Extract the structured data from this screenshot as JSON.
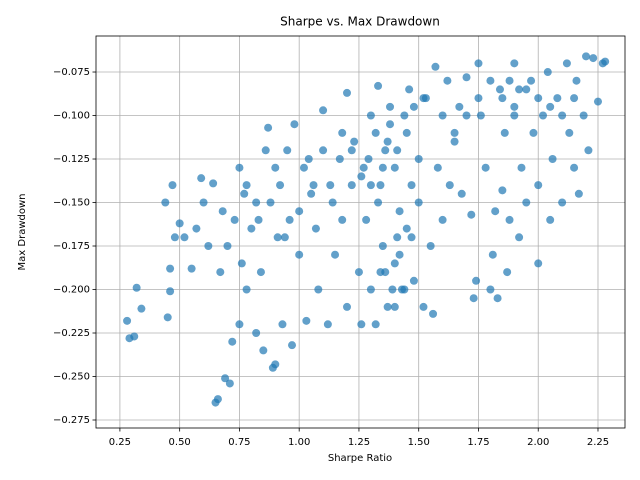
{
  "chart_data": {
    "type": "scatter",
    "title": "Sharpe vs. Max Drawdown",
    "x_label": "Sharpe Ratio",
    "y_label": "Max Drawdown",
    "color": "#1f77b4",
    "grid": true,
    "xlim": [
      0.15,
      2.363
    ],
    "ylim": [
      -0.2796,
      -0.0543
    ],
    "xticks": [
      0.25,
      {
        "value": 0.5,
        "label": "0.50"
      },
      0.75,
      {
        "value": 1.0,
        "label": "1.00"
      },
      1.25,
      {
        "value": 1.5,
        "label": "1.50"
      },
      1.75,
      {
        "value": 2.0,
        "label": "2.00"
      },
      2.25
    ],
    "yticks": [
      {
        "value": -0.275,
        "label": "−0.275"
      },
      {
        "value": -0.25,
        "label": "−0.250"
      },
      {
        "value": -0.225,
        "label": "−0.225"
      },
      {
        "value": -0.2,
        "label": "−0.200"
      },
      {
        "value": -0.175,
        "label": "−0.175"
      },
      {
        "value": -0.15,
        "label": "−0.150"
      },
      {
        "value": -0.125,
        "label": "−0.125"
      },
      {
        "value": -0.1,
        "label": "−0.100"
      },
      {
        "value": -0.075,
        "label": "−0.075"
      }
    ],
    "x": [
      0.28,
      0.29,
      0.31,
      0.32,
      0.34,
      0.44,
      0.45,
      0.46,
      0.46,
      0.47,
      0.48,
      0.5,
      0.52,
      0.55,
      0.57,
      0.59,
      0.6,
      0.62,
      0.64,
      0.65,
      0.66,
      0.67,
      0.68,
      0.69,
      0.7,
      0.71,
      0.72,
      0.73,
      0.75,
      0.75,
      0.76,
      0.77,
      0.78,
      0.8,
      0.82,
      0.83,
      0.84,
      0.85,
      0.86,
      0.87,
      0.88,
      0.89,
      0.9,
      0.91,
      0.92,
      0.93,
      0.95,
      0.97,
      0.98,
      1.0,
      1.0,
      1.02,
      1.03,
      1.05,
      1.07,
      1.08,
      1.1,
      1.1,
      1.12,
      1.13,
      1.15,
      1.17,
      1.18,
      1.2,
      1.2,
      1.22,
      1.23,
      1.25,
      1.26,
      1.27,
      1.28,
      1.3,
      1.3,
      1.32,
      1.33,
      1.34,
      1.35,
      1.36,
      1.37,
      1.38,
      1.4,
      1.4,
      1.42,
      1.43,
      1.45,
      1.46,
      1.47,
      1.48,
      1.5,
      1.5,
      1.52,
      1.53,
      1.55,
      1.56,
      1.57,
      1.58,
      1.6,
      1.6,
      1.62,
      1.63,
      1.65,
      1.67,
      1.68,
      1.7,
      1.72,
      1.73,
      1.74,
      1.75,
      1.76,
      1.78,
      1.8,
      1.81,
      1.82,
      1.83,
      1.84,
      1.85,
      1.86,
      1.87,
      1.88,
      1.9,
      1.9,
      1.92,
      1.93,
      1.95,
      1.97,
      1.98,
      2.0,
      2.0,
      2.02,
      2.04,
      2.05,
      2.06,
      2.08,
      2.1,
      2.12,
      2.13,
      2.15,
      2.16,
      2.17,
      2.19,
      2.2,
      2.21,
      2.23,
      2.25,
      2.27,
      2.28,
      1.32,
      1.35,
      1.38,
      1.41,
      1.44,
      1.47,
      1.36,
      1.39,
      1.42,
      1.45,
      1.29,
      1.33,
      1.37,
      1.41,
      1.26,
      1.22,
      1.18,
      1.14,
      1.06,
      0.96,
      0.9,
      0.82,
      0.78,
      0.94,
      1.04,
      1.48,
      1.52,
      1.44,
      1.4,
      1.34,
      1.3,
      1.85,
      1.9,
      1.95,
      2.0,
      2.05,
      1.8,
      1.75,
      1.7,
      1.65,
      2.1,
      2.15,
      1.92,
      1.88
    ],
    "values": [
      -0.218,
      -0.228,
      -0.227,
      -0.199,
      -0.211,
      -0.15,
      -0.216,
      -0.201,
      -0.188,
      -0.14,
      -0.17,
      -0.162,
      -0.17,
      -0.188,
      -0.165,
      -0.136,
      -0.15,
      -0.175,
      -0.139,
      -0.265,
      -0.263,
      -0.19,
      -0.155,
      -0.251,
      -0.175,
      -0.254,
      -0.23,
      -0.16,
      -0.13,
      -0.22,
      -0.185,
      -0.145,
      -0.2,
      -0.165,
      -0.225,
      -0.16,
      -0.19,
      -0.235,
      -0.12,
      -0.107,
      -0.15,
      -0.245,
      -0.243,
      -0.17,
      -0.14,
      -0.22,
      -0.12,
      -0.232,
      -0.105,
      -0.155,
      -0.18,
      -0.13,
      -0.218,
      -0.145,
      -0.165,
      -0.2,
      -0.12,
      -0.097,
      -0.22,
      -0.14,
      -0.18,
      -0.125,
      -0.16,
      -0.087,
      -0.21,
      -0.14,
      -0.115,
      -0.19,
      -0.22,
      -0.13,
      -0.16,
      -0.1,
      -0.2,
      -0.22,
      -0.083,
      -0.14,
      -0.175,
      -0.12,
      -0.21,
      -0.095,
      -0.185,
      -0.13,
      -0.155,
      -0.2,
      -0.11,
      -0.085,
      -0.17,
      -0.195,
      -0.125,
      -0.15,
      -0.21,
      -0.09,
      -0.175,
      -0.214,
      -0.072,
      -0.13,
      -0.1,
      -0.16,
      -0.08,
      -0.14,
      -0.115,
      -0.095,
      -0.145,
      -0.078,
      -0.157,
      -0.205,
      -0.195,
      -0.07,
      -0.1,
      -0.13,
      -0.2,
      -0.18,
      -0.155,
      -0.205,
      -0.085,
      -0.143,
      -0.11,
      -0.19,
      -0.16,
      -0.07,
      -0.095,
      -0.17,
      -0.13,
      -0.15,
      -0.08,
      -0.11,
      -0.185,
      -0.14,
      -0.1,
      -0.075,
      -0.16,
      -0.125,
      -0.09,
      -0.15,
      -0.07,
      -0.11,
      -0.13,
      -0.08,
      -0.145,
      -0.1,
      -0.066,
      -0.12,
      -0.067,
      -0.092,
      -0.07,
      -0.069,
      -0.11,
      -0.13,
      -0.105,
      -0.12,
      -0.1,
      -0.14,
      -0.19,
      -0.2,
      -0.18,
      -0.165,
      -0.125,
      -0.15,
      -0.115,
      -0.17,
      -0.135,
      -0.12,
      -0.11,
      -0.15,
      -0.14,
      -0.16,
      -0.13,
      -0.15,
      -0.14,
      -0.17,
      -0.125,
      -0.095,
      -0.09,
      -0.2,
      -0.21,
      -0.19,
      -0.14,
      -0.09,
      -0.1,
      -0.085,
      -0.09,
      -0.095,
      -0.08,
      -0.09,
      -0.1,
      -0.11,
      -0.1,
      -0.09,
      -0.085,
      -0.08
    ]
  }
}
